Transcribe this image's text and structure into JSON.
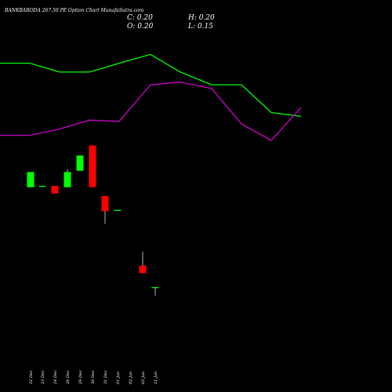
{
  "header": {
    "title": "BANKBARODA 267.50  PE Option  Chart MunafaSutra.com",
    "close_label": "C: 0.20",
    "high_label": "H: 0.20",
    "open_label": "O: 0.20",
    "low_label": "L: 0.15"
  },
  "colors": {
    "background": "#000000",
    "up_candle": "#00ff00",
    "down_candle": "#ff0000",
    "upper_line": "#00ff00",
    "lower_line": "#cc00cc",
    "text": "#ffffff"
  },
  "chart_data": {
    "type": "candlestick",
    "title": "BANKBARODA 267.50  PE Option  Chart MunafaSutra.com",
    "categories": [
      "22 Dec",
      "23 Dec",
      "24 Dec",
      "26 Dec",
      "29 Dec",
      "30 Dec",
      "31 Dec",
      "01 Jan",
      "02 Jan",
      "05 Jan",
      "21 Jan"
    ],
    "candles": [
      {
        "date": "22 Dec",
        "open": 3.2,
        "close": 4.4,
        "high": 4.4,
        "low": 3.2
      },
      {
        "date": "23 Dec",
        "open": 3.3,
        "close": 3.3,
        "high": 3.3,
        "low": 3.3
      },
      {
        "date": "24 Dec",
        "open": 3.3,
        "close": 2.7,
        "high": 3.3,
        "low": 2.7
      },
      {
        "date": "26 Dec",
        "open": 3.2,
        "close": 4.4,
        "high": 4.6,
        "low": 3.2
      },
      {
        "date": "29 Dec",
        "open": 4.5,
        "close": 5.7,
        "high": 5.7,
        "low": 4.5
      },
      {
        "date": "30 Dec",
        "open": 6.5,
        "close": 3.2,
        "high": 6.5,
        "low": 3.2
      },
      {
        "date": "31 Dec",
        "open": 2.5,
        "close": 1.3,
        "high": 2.5,
        "low": 0.3
      },
      {
        "date": "01 Jan",
        "open": 1.4,
        "close": 1.4,
        "high": 1.4,
        "low": 1.4
      },
      {
        "date": "02 Jan",
        "open": null,
        "close": null,
        "high": null,
        "low": null
      },
      {
        "date": "05 Jan",
        "open": -3.0,
        "close": -3.6,
        "high": -1.9,
        "low": -3.6
      },
      {
        "date": "21 Jan",
        "open": -4.7,
        "close": -4.7,
        "high": -4.7,
        "low": -5.4
      }
    ],
    "series": [
      {
        "values": [
          13.0,
          13.0,
          12.3,
          12.3,
          13.0,
          13.7,
          12.3,
          11.3,
          11.3,
          9.1,
          8.8
        ]
      },
      {
        "values": [
          7.3,
          7.3,
          7.8,
          8.5,
          8.4,
          11.3,
          11.5,
          11.0,
          8.2,
          6.9,
          9.5
        ]
      }
    ],
    "ylim": [
      -13.0,
      18.0
    ],
    "grid": false,
    "legend": "none"
  }
}
